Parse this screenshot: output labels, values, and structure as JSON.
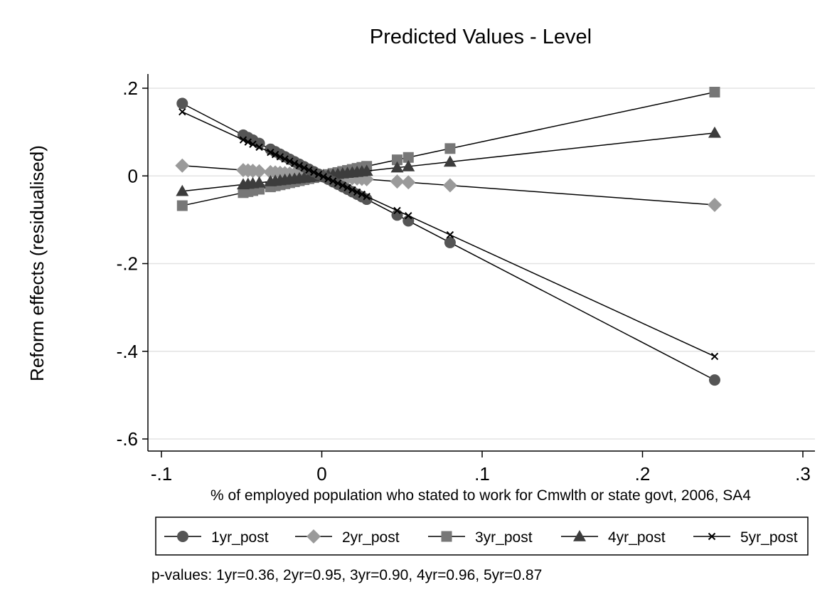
{
  "chart_data": {
    "type": "line",
    "title": "Predicted Values - Level",
    "xlabel": "% of employed population who stated to work for Cmwlth or state govt, 2006, SA4",
    "ylabel": "Reform effects (residualised)",
    "xlim": [
      -0.1,
      0.3
    ],
    "ylim": [
      -0.6,
      0.2
    ],
    "x_ticks": [
      {
        "value": -0.1,
        "label": "-.1"
      },
      {
        "value": 0,
        "label": "0"
      },
      {
        "value": 0.1,
        "label": ".1"
      },
      {
        "value": 0.2,
        "label": ".2"
      },
      {
        "value": 0.3,
        "label": ".3"
      }
    ],
    "y_ticks": [
      {
        "value": 0.2,
        "label": ".2"
      },
      {
        "value": 0,
        "label": "0"
      },
      {
        "value": -0.2,
        "label": "-.2"
      },
      {
        "value": -0.4,
        "label": "-.4"
      },
      {
        "value": -0.6,
        "label": "-.6"
      }
    ],
    "grid": true,
    "legend_position": "bottom",
    "x": [
      -0.087,
      -0.049,
      -0.046,
      -0.043,
      -0.039,
      -0.032,
      -0.029,
      -0.026,
      -0.023,
      -0.02,
      -0.017,
      -0.014,
      -0.011,
      -0.008,
      -0.005,
      -0.002,
      0.001,
      0.004,
      0.007,
      0.01,
      0.013,
      0.016,
      0.019,
      0.022,
      0.025,
      0.028,
      0.047,
      0.054,
      0.08,
      0.245
    ],
    "series": [
      {
        "name": "1yr_post",
        "marker": "circle",
        "color": "#555555",
        "slope": -1.9,
        "intercept": 0.0
      },
      {
        "name": "2yr_post",
        "marker": "diamond",
        "color": "#9a9a9a",
        "slope": -0.27,
        "intercept": 0.0
      },
      {
        "name": "3yr_post",
        "marker": "square",
        "color": "#777777",
        "slope": 0.78,
        "intercept": 0.0
      },
      {
        "name": "4yr_post",
        "marker": "triangle",
        "color": "#3c3c3c",
        "slope": 0.4,
        "intercept": 0.0
      },
      {
        "name": "5yr_post",
        "marker": "x",
        "color": "#000000",
        "slope": -1.68,
        "intercept": 0.0
      }
    ],
    "note": "p-values: 1yr=0.36,  2yr=0.95,  3yr=0.90,  4yr=0.96,  5yr=0.87"
  }
}
